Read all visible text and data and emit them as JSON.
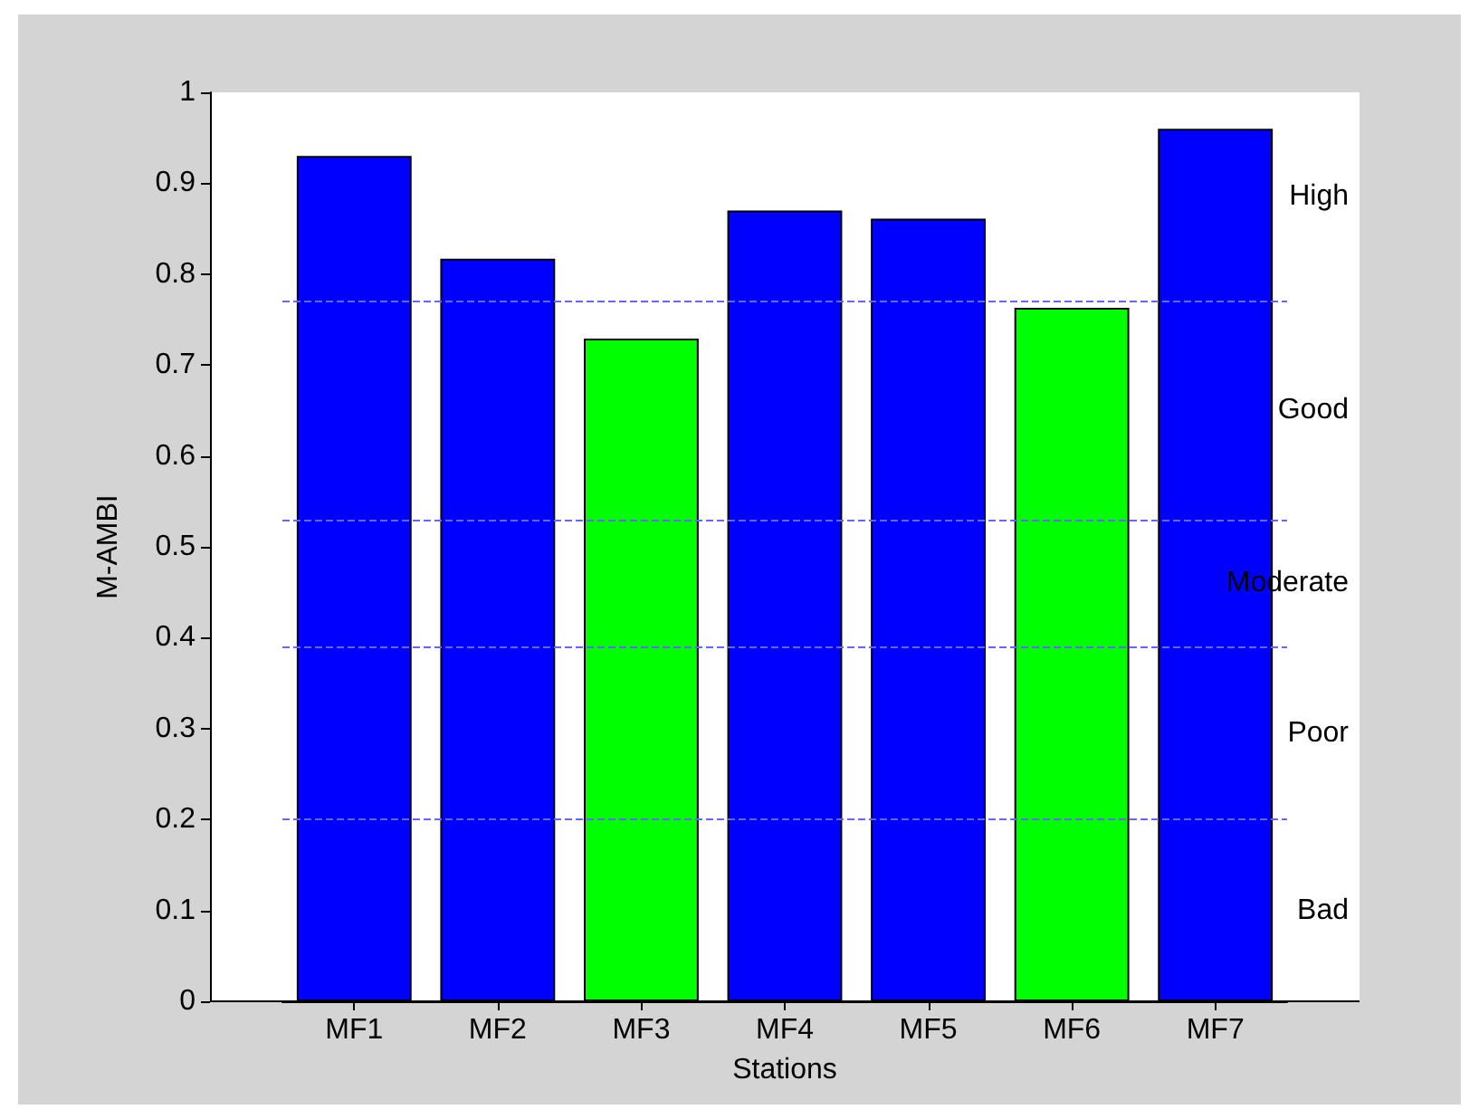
{
  "chart_data": {
    "type": "bar",
    "xlabel": "Stations",
    "ylabel": "M-AMBI",
    "categories": [
      "MF1",
      "MF2",
      "MF3",
      "MF4",
      "MF5",
      "MF6",
      "MF7"
    ],
    "values": [
      0.93,
      0.817,
      0.729,
      0.87,
      0.861,
      0.763,
      0.96
    ],
    "colors": [
      "#0000ff",
      "#0000ff",
      "#00ff00",
      "#0000ff",
      "#0000ff",
      "#00ff00",
      "#0000ff"
    ],
    "ylim": [
      0,
      1
    ],
    "yticks": [
      0,
      0.1,
      0.2,
      0.3,
      0.4,
      0.5,
      0.6,
      0.7,
      0.8,
      0.9,
      1
    ],
    "grid": false,
    "ref_lines": [
      {
        "axis": "y",
        "value": 0.77,
        "color": "#6666ff",
        "line_style": "dashed"
      },
      {
        "axis": "y",
        "value": 0.53,
        "color": "#6666ff",
        "line_style": "dashed"
      },
      {
        "axis": "y",
        "value": 0.39,
        "color": "#6666ff",
        "line_style": "dashed"
      },
      {
        "axis": "y",
        "value": 0.2,
        "color": "#6666ff",
        "line_style": "dashed"
      }
    ],
    "annotations": [
      "High",
      "Good",
      "Moderate",
      "Poor",
      "Bad"
    ]
  }
}
